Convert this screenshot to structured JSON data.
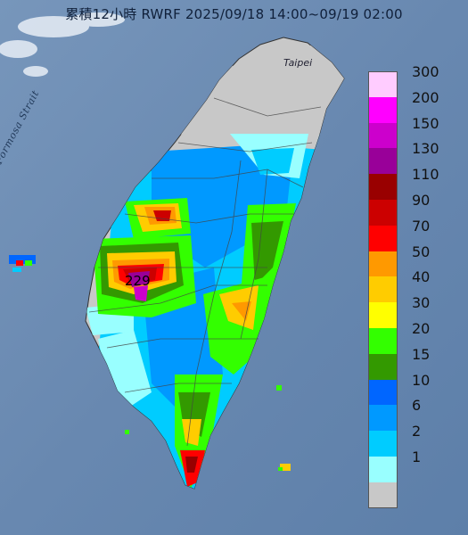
{
  "title": "累積12小時 RWRF 2025/09/18 14:00~09/19 02:00",
  "map_labels": {
    "taipei": "Taipei",
    "taiwan_strait": "Formosa Strait",
    "max_value": "229"
  },
  "legend": {
    "unit_steps": [
      {
        "label": "300",
        "color": "#ffccff"
      },
      {
        "label": "200",
        "color": "#ff00ff"
      },
      {
        "label": "150",
        "color": "#cc00cc"
      },
      {
        "label": "130",
        "color": "#990099"
      },
      {
        "label": "110",
        "color": "#990000"
      },
      {
        "label": "90",
        "color": "#cc0000"
      },
      {
        "label": "70",
        "color": "#ff0000"
      },
      {
        "label": "50",
        "color": "#ff9900"
      },
      {
        "label": "40",
        "color": "#ffcc00"
      },
      {
        "label": "30",
        "color": "#ffff00"
      },
      {
        "label": "20",
        "color": "#33ff00"
      },
      {
        "label": "15",
        "color": "#339900"
      },
      {
        "label": "10",
        "color": "#0066ff"
      },
      {
        "label": "6",
        "color": "#0099ff"
      },
      {
        "label": "2",
        "color": "#00ccff"
      },
      {
        "label": "1",
        "color": "#99ffff"
      },
      {
        "label": "",
        "color": "#c8c8c8"
      }
    ]
  },
  "colors": {
    "ocean": "#6f8fb3",
    "land_base": "#c8c8c8"
  }
}
